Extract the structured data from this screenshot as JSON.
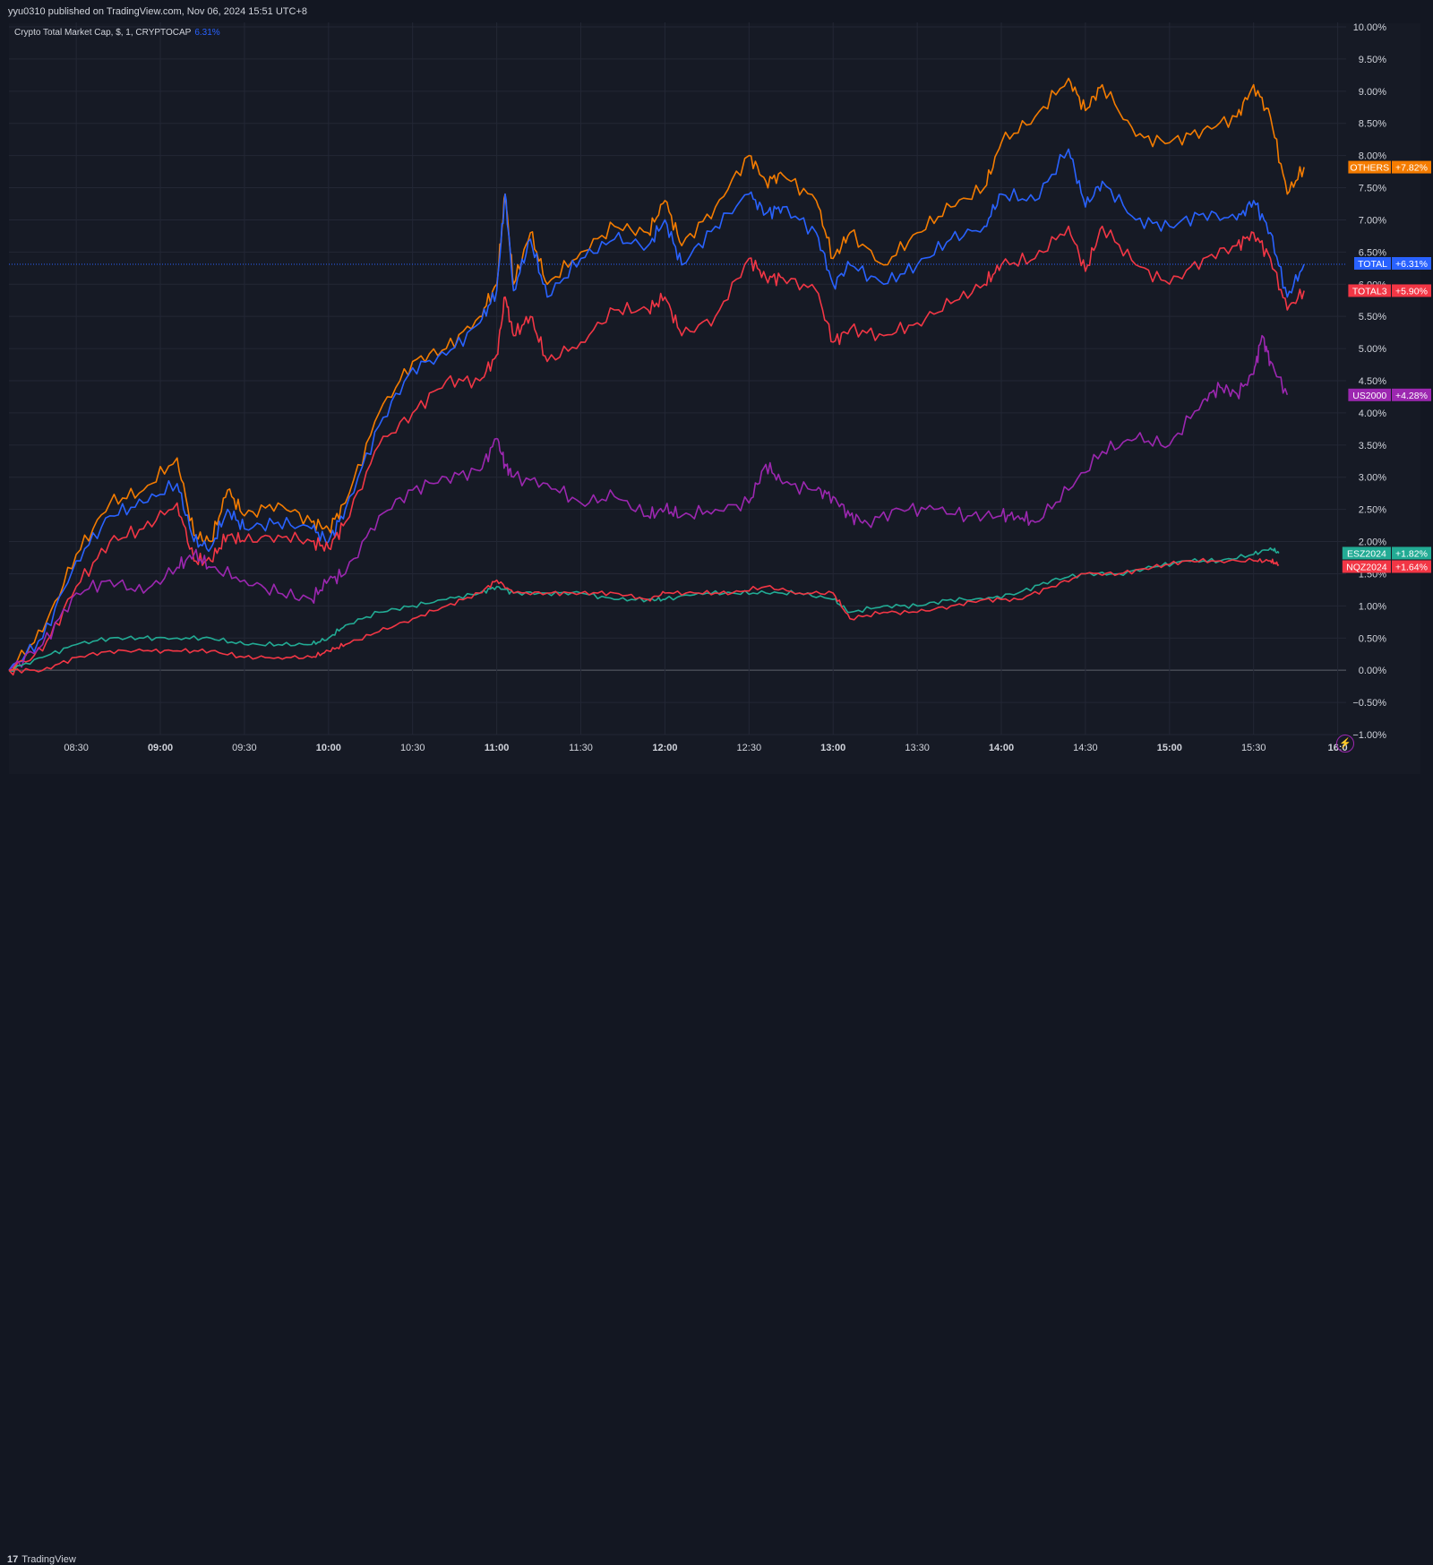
{
  "header": {
    "published": "yyu0310 published on TradingView.com, Nov 06, 2024 15:51 UTC+8"
  },
  "legend": {
    "title": "Crypto Total Market Cap, $, 1, CRYPTOCAP",
    "change": "6.31%"
  },
  "footer": {
    "brand": "TradingView",
    "logo": "17"
  },
  "colors": {
    "background": "#161a25",
    "grid": "#232735",
    "axis_text": "#d1d4dc"
  },
  "chart_data": {
    "type": "line",
    "x_unit": "time (hours)",
    "xlim": [
      8.1,
      16.05
    ],
    "ylim": [
      -1.0,
      10.0
    ],
    "y_ticks": [
      "10.00%",
      "9.50%",
      "9.00%",
      "8.50%",
      "8.00%",
      "7.50%",
      "7.00%",
      "6.50%",
      "6.00%",
      "5.50%",
      "5.00%",
      "4.50%",
      "4.00%",
      "3.50%",
      "3.00%",
      "2.50%",
      "2.00%",
      "1.50%",
      "1.00%",
      "0.50%",
      "0.00%",
      "−0.50%",
      "−1.00%"
    ],
    "x_ticks": [
      {
        "t": 8.5,
        "label": "08:30",
        "bold": false
      },
      {
        "t": 9.0,
        "label": "09:00",
        "bold": true
      },
      {
        "t": 9.5,
        "label": "09:30",
        "bold": false
      },
      {
        "t": 10.0,
        "label": "10:00",
        "bold": true
      },
      {
        "t": 10.5,
        "label": "10:30",
        "bold": false
      },
      {
        "t": 11.0,
        "label": "11:00",
        "bold": true
      },
      {
        "t": 11.5,
        "label": "11:30",
        "bold": false
      },
      {
        "t": 12.0,
        "label": "12:00",
        "bold": true
      },
      {
        "t": 12.5,
        "label": "12:30",
        "bold": false
      },
      {
        "t": 13.0,
        "label": "13:00",
        "bold": true
      },
      {
        "t": 13.5,
        "label": "13:30",
        "bold": false
      },
      {
        "t": 14.0,
        "label": "14:00",
        "bold": true
      },
      {
        "t": 14.5,
        "label": "14:30",
        "bold": false
      },
      {
        "t": 15.0,
        "label": "15:00",
        "bold": true
      },
      {
        "t": 15.5,
        "label": "15:30",
        "bold": false
      },
      {
        "t": 16.0,
        "label": "16:0",
        "bold": true
      }
    ],
    "last_value_line": 6.31,
    "series": [
      {
        "name": "OTHERS",
        "color": "#f57c00",
        "label": "+7.82%",
        "last": 7.82,
        "x": [
          8.1,
          8.3,
          8.5,
          8.7,
          8.9,
          9.1,
          9.2,
          9.3,
          9.4,
          9.5,
          9.7,
          9.9,
          10.0,
          10.1,
          10.3,
          10.5,
          10.7,
          10.9,
          11.0,
          11.05,
          11.1,
          11.2,
          11.3,
          11.5,
          11.7,
          11.9,
          12.0,
          12.1,
          12.3,
          12.5,
          12.6,
          12.7,
          12.9,
          13.0,
          13.1,
          13.3,
          13.5,
          13.7,
          13.9,
          14.0,
          14.2,
          14.4,
          14.5,
          14.6,
          14.8,
          15.0,
          15.2,
          15.4,
          15.5,
          15.6,
          15.7,
          15.8
        ],
        "y": [
          0,
          0.6,
          1.8,
          2.6,
          2.8,
          3.3,
          2.1,
          2.0,
          2.8,
          2.4,
          2.6,
          2.3,
          2.2,
          2.6,
          4.0,
          4.8,
          5.0,
          5.5,
          6.0,
          7.4,
          6.0,
          6.8,
          6.0,
          6.5,
          6.9,
          6.8,
          7.3,
          6.6,
          7.2,
          8.0,
          7.6,
          7.7,
          7.3,
          6.4,
          6.8,
          6.3,
          6.8,
          7.2,
          7.5,
          8.2,
          8.6,
          9.2,
          8.7,
          9.1,
          8.3,
          8.2,
          8.4,
          8.6,
          9.1,
          8.6,
          7.4,
          7.82
        ]
      },
      {
        "name": "TOTAL",
        "color": "#2962ff",
        "label": "+6.31%",
        "last": 6.31,
        "x": [
          8.1,
          8.3,
          8.5,
          8.7,
          8.9,
          9.1,
          9.2,
          9.3,
          9.4,
          9.5,
          9.7,
          9.9,
          10.0,
          10.1,
          10.3,
          10.5,
          10.7,
          10.9,
          11.0,
          11.05,
          11.1,
          11.2,
          11.3,
          11.5,
          11.7,
          11.9,
          12.0,
          12.1,
          12.3,
          12.5,
          12.6,
          12.7,
          12.9,
          13.0,
          13.1,
          13.3,
          13.5,
          13.7,
          13.9,
          14.0,
          14.2,
          14.4,
          14.5,
          14.6,
          14.8,
          15.0,
          15.2,
          15.4,
          15.5,
          15.6,
          15.7,
          15.8
        ],
        "y": [
          0,
          0.5,
          1.7,
          2.4,
          2.6,
          2.9,
          2.0,
          1.9,
          2.5,
          2.2,
          2.3,
          2.2,
          2.0,
          2.5,
          3.8,
          4.7,
          4.9,
          5.4,
          5.9,
          7.4,
          5.9,
          6.7,
          5.8,
          6.4,
          6.7,
          6.6,
          7.0,
          6.3,
          6.9,
          7.4,
          7.1,
          7.2,
          6.8,
          6.0,
          6.3,
          6.0,
          6.3,
          6.7,
          6.9,
          7.4,
          7.3,
          8.1,
          7.2,
          7.6,
          7.0,
          6.9,
          7.1,
          7.0,
          7.3,
          6.8,
          5.8,
          6.31
        ]
      },
      {
        "name": "TOTAL3",
        "color": "#f23645",
        "label": "+5.90%",
        "last": 5.9,
        "x": [
          8.1,
          8.3,
          8.5,
          8.7,
          8.9,
          9.1,
          9.2,
          9.3,
          9.4,
          9.5,
          9.7,
          9.9,
          10.0,
          10.1,
          10.3,
          10.5,
          10.7,
          10.9,
          11.0,
          11.05,
          11.1,
          11.2,
          11.3,
          11.5,
          11.7,
          11.9,
          12.0,
          12.1,
          12.3,
          12.5,
          12.6,
          12.7,
          12.9,
          13.0,
          13.1,
          13.3,
          13.5,
          13.7,
          13.9,
          14.0,
          14.2,
          14.4,
          14.5,
          14.6,
          14.8,
          15.0,
          15.2,
          15.4,
          15.5,
          15.6,
          15.7,
          15.8
        ],
        "y": [
          0,
          0.3,
          1.3,
          2.0,
          2.2,
          2.6,
          1.7,
          1.7,
          2.1,
          2.0,
          2.1,
          2.0,
          1.9,
          2.3,
          3.5,
          4.0,
          4.5,
          4.5,
          4.9,
          5.8,
          5.2,
          5.5,
          4.8,
          5.1,
          5.6,
          5.6,
          5.8,
          5.2,
          5.5,
          6.4,
          6.1,
          6.1,
          5.9,
          5.1,
          5.3,
          5.2,
          5.4,
          5.7,
          6.0,
          6.3,
          6.4,
          6.9,
          6.2,
          6.9,
          6.3,
          6.0,
          6.4,
          6.6,
          6.8,
          6.4,
          5.6,
          5.9
        ]
      },
      {
        "name": "US2000",
        "color": "#9c27b0",
        "label": "+4.28%",
        "last": 4.28,
        "x": [
          8.1,
          8.3,
          8.5,
          8.7,
          8.9,
          9.1,
          9.2,
          9.3,
          9.5,
          9.7,
          9.9,
          10.0,
          10.1,
          10.3,
          10.5,
          10.7,
          10.9,
          11.0,
          11.05,
          11.1,
          11.3,
          11.5,
          11.7,
          11.9,
          12.0,
          12.1,
          12.3,
          12.5,
          12.6,
          12.7,
          12.9,
          13.0,
          13.1,
          13.2,
          13.4,
          13.6,
          13.8,
          14.0,
          14.1,
          14.2,
          14.4,
          14.6,
          14.8,
          15.0,
          15.2,
          15.3,
          15.4,
          15.5,
          15.55,
          15.6,
          15.7
        ],
        "y": [
          0,
          0.4,
          1.2,
          1.4,
          1.2,
          1.6,
          1.8,
          1.6,
          1.4,
          1.2,
          1.1,
          1.4,
          1.5,
          2.4,
          2.8,
          3.0,
          3.1,
          3.6,
          3.2,
          3.0,
          2.9,
          2.6,
          2.7,
          2.4,
          2.5,
          2.4,
          2.5,
          2.6,
          3.2,
          2.9,
          2.8,
          2.7,
          2.4,
          2.3,
          2.5,
          2.5,
          2.4,
          2.4,
          2.4,
          2.3,
          2.8,
          3.4,
          3.6,
          3.5,
          4.2,
          4.4,
          4.3,
          4.6,
          5.2,
          4.8,
          4.28
        ]
      },
      {
        "name": "ESZ2024",
        "color": "#22ab94",
        "label": "+1.82%",
        "last": 1.82,
        "x": [
          8.1,
          8.3,
          8.5,
          8.7,
          8.9,
          9.1,
          9.3,
          9.5,
          9.7,
          9.9,
          10.0,
          10.1,
          10.3,
          10.5,
          10.7,
          10.9,
          11.0,
          11.1,
          11.3,
          11.5,
          11.7,
          11.9,
          12.0,
          12.2,
          12.4,
          12.6,
          12.8,
          13.0,
          13.1,
          13.3,
          13.5,
          13.7,
          13.9,
          14.1,
          14.3,
          14.5,
          14.7,
          14.9,
          15.1,
          15.3,
          15.5,
          15.6,
          15.65
        ],
        "y": [
          0,
          0.2,
          0.4,
          0.5,
          0.5,
          0.5,
          0.5,
          0.4,
          0.4,
          0.4,
          0.5,
          0.7,
          0.9,
          1.0,
          1.1,
          1.2,
          1.3,
          1.2,
          1.2,
          1.2,
          1.1,
          1.1,
          1.1,
          1.2,
          1.2,
          1.2,
          1.2,
          1.1,
          0.9,
          1.0,
          1.0,
          1.1,
          1.1,
          1.2,
          1.4,
          1.5,
          1.5,
          1.6,
          1.7,
          1.7,
          1.8,
          1.9,
          1.82
        ]
      },
      {
        "name": "NQZ2024",
        "color": "#f23645",
        "label": "+1.64%",
        "last": 1.64,
        "x": [
          8.1,
          8.3,
          8.5,
          8.7,
          8.9,
          9.1,
          9.3,
          9.5,
          9.7,
          9.9,
          10.0,
          10.1,
          10.3,
          10.5,
          10.7,
          10.9,
          11.0,
          11.1,
          11.3,
          11.5,
          11.7,
          11.9,
          12.0,
          12.2,
          12.4,
          12.6,
          12.8,
          13.0,
          13.1,
          13.3,
          13.5,
          13.7,
          13.9,
          14.1,
          14.3,
          14.5,
          14.7,
          14.9,
          15.1,
          15.3,
          15.5,
          15.6,
          15.65
        ],
        "y": [
          0,
          0.0,
          0.2,
          0.3,
          0.3,
          0.3,
          0.3,
          0.2,
          0.2,
          0.2,
          0.3,
          0.4,
          0.6,
          0.8,
          1.0,
          1.2,
          1.4,
          1.2,
          1.2,
          1.2,
          1.2,
          1.1,
          1.2,
          1.2,
          1.2,
          1.3,
          1.2,
          1.2,
          0.8,
          0.9,
          0.9,
          1.0,
          1.1,
          1.1,
          1.3,
          1.5,
          1.5,
          1.6,
          1.7,
          1.7,
          1.7,
          1.7,
          1.64
        ]
      }
    ]
  }
}
